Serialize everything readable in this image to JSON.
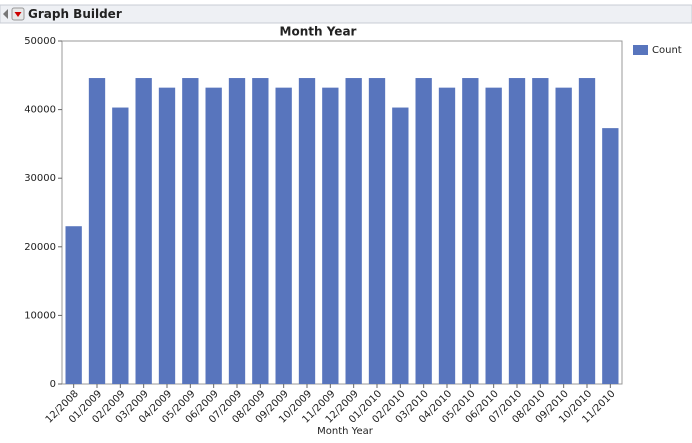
{
  "header": {
    "title": "Graph Builder"
  },
  "chart_data": {
    "type": "bar",
    "title": "Month Year",
    "x_label": "Month Year",
    "categories": [
      "12/2008",
      "01/2009",
      "02/2009",
      "03/2009",
      "04/2009",
      "05/2009",
      "06/2009",
      "07/2009",
      "08/2009",
      "09/2009",
      "10/2009",
      "11/2009",
      "12/2009",
      "01/2010",
      "02/2010",
      "03/2010",
      "04/2010",
      "05/2010",
      "06/2010",
      "07/2010",
      "08/2010",
      "09/2010",
      "10/2010",
      "11/2010"
    ],
    "series": [
      {
        "name": "Count",
        "color": "#5875bd",
        "values": [
          23000,
          44600,
          40300,
          44600,
          43200,
          44600,
          43200,
          44600,
          44600,
          43200,
          44600,
          43200,
          44600,
          44600,
          40300,
          44600,
          43200,
          44600,
          43200,
          44600,
          44600,
          43200,
          44600,
          37300
        ]
      }
    ],
    "ylim": [
      0,
      50000
    ],
    "yticks": [
      0,
      10000,
      20000,
      30000,
      40000,
      50000
    ],
    "grid": false,
    "legend": "right"
  }
}
